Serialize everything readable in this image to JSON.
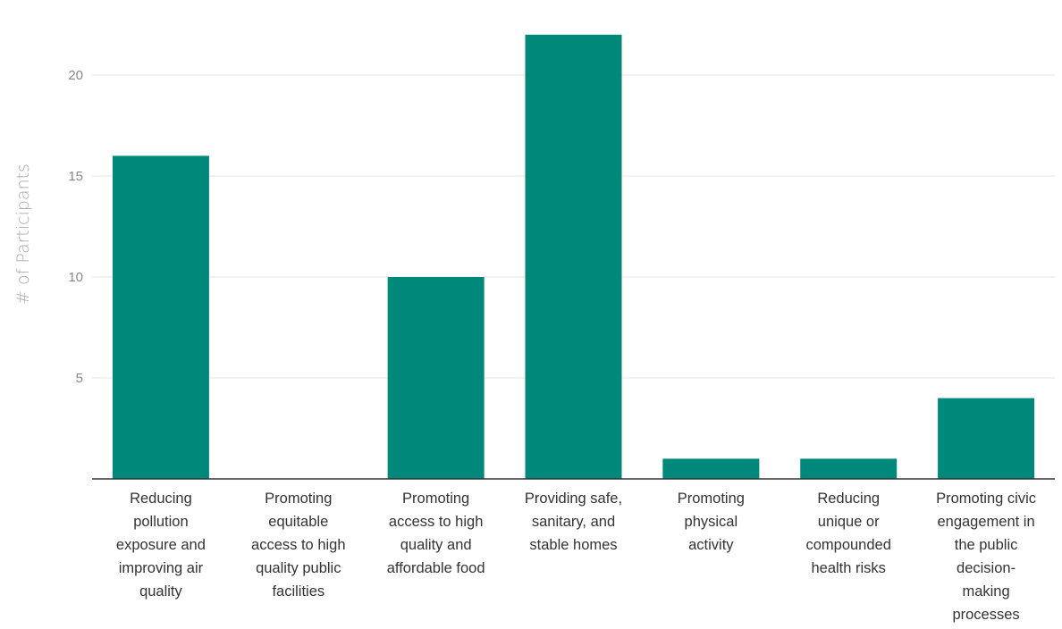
{
  "chart_data": {
    "type": "bar",
    "title": "",
    "xlabel": "",
    "ylabel": "# of Participants",
    "categories": [
      "Reducing pollution exposure and improving air quality",
      "Promoting equitable access to high quality public facilities",
      "Promoting access to high quality and affordable food",
      "Providing safe, sanitary, and stable homes",
      "Promoting physical activity",
      "Reducing unique or compounded health risks",
      "Promoting civic engagement in the public decision-making processes"
    ],
    "category_lines": [
      [
        "Reducing",
        "pollution",
        "exposure and",
        "improving air",
        "quality"
      ],
      [
        "Promoting",
        "equitable",
        "access to high",
        "quality public",
        "facilities"
      ],
      [
        "Promoting",
        "access to high",
        "quality and",
        "affordable food"
      ],
      [
        "Providing safe,",
        "sanitary, and",
        "stable homes"
      ],
      [
        "Promoting",
        "physical",
        "activity"
      ],
      [
        "Reducing",
        "unique or",
        "compounded",
        "health risks"
      ],
      [
        "Promoting civic",
        "engagement in",
        "the public",
        "decision-",
        "making",
        "processes"
      ]
    ],
    "values": [
      16,
      0,
      10,
      22,
      1,
      1,
      4
    ],
    "ylim": [
      0,
      22
    ],
    "yticks": [
      5,
      10,
      15,
      20
    ],
    "grid": true,
    "bar_color": "#00897b",
    "gridline_color": "#e6e6e6",
    "axis_color": "#333333"
  }
}
